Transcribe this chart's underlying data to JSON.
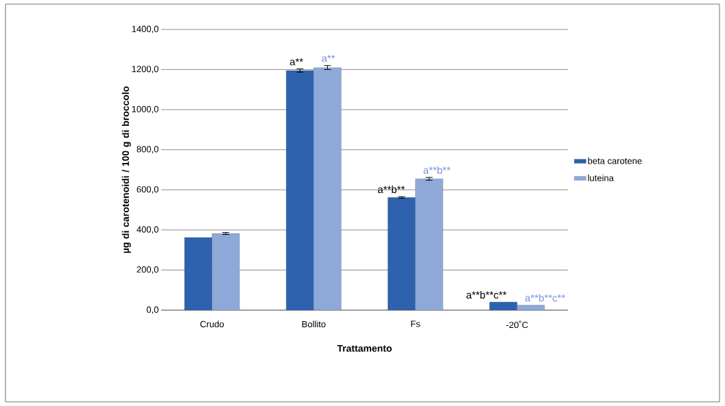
{
  "chart_data": {
    "type": "bar",
    "xlabel": "Trattamento",
    "ylabel": "µg di carotenoidi / 100 g di broccolo",
    "categories": [
      "Crudo",
      "Bollito",
      "Fs",
      "-20˚C"
    ],
    "series": [
      {
        "name": "beta carotene",
        "color": "#2e62ae",
        "values": [
          362,
          1195,
          562,
          40
        ],
        "errors": [
          null,
          8,
          4,
          null
        ],
        "value_labels": [
          null,
          "a**",
          "a**b**",
          "a**b**c**"
        ]
      },
      {
        "name": "luteina",
        "color": "#8ea9d8",
        "values": [
          382,
          1210,
          655,
          25
        ],
        "errors": [
          5,
          10,
          7,
          null
        ],
        "value_labels": [
          null,
          "a**",
          "a**b**",
          "a**b**c**"
        ]
      }
    ],
    "ylim": [
      0,
      1400
    ],
    "yticks": [
      {
        "value": 0,
        "label": "0,0"
      },
      {
        "value": 200,
        "label": "200,0"
      },
      {
        "value": 400,
        "label": "400,0"
      },
      {
        "value": 600,
        "label": "600,0"
      },
      {
        "value": 800,
        "label": "800,0"
      },
      {
        "value": 1000,
        "label": "1000,0"
      },
      {
        "value": 1200,
        "label": "1200,0"
      },
      {
        "value": 1400,
        "label": "1400,0"
      }
    ],
    "grid": "y",
    "legend": "right"
  }
}
